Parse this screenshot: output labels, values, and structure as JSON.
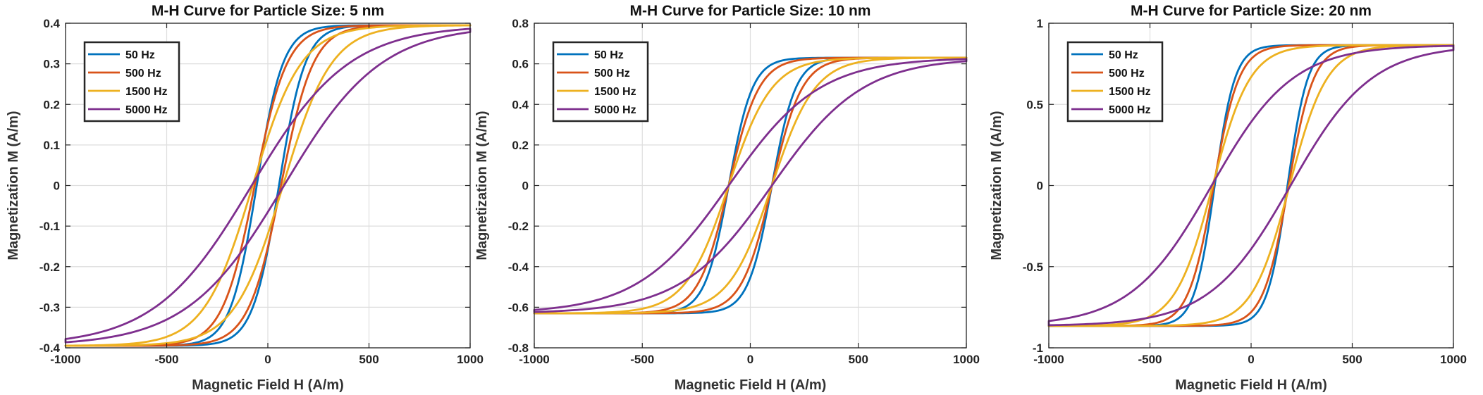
{
  "chart_data": [
    {
      "type": "line",
      "title": "M-H Curve for Particle Size: 5 nm",
      "xlabel": "Magnetic Field H (A/m)",
      "ylabel": "Magnetization M (A/m)",
      "xlim": [
        -1000,
        1000
      ],
      "ylim": [
        -0.4,
        0.4
      ],
      "xticks": [
        -1000,
        -500,
        0,
        500,
        1000
      ],
      "yticks": [
        -0.4,
        -0.3,
        -0.2,
        -0.1,
        0,
        0.1,
        0.2,
        0.3,
        0.4
      ],
      "grid": true,
      "legend_position": "top-left",
      "ms": 0.395,
      "series": [
        {
          "name": "50 Hz",
          "color": "#0072BD",
          "coercivity": 55,
          "width": 130
        },
        {
          "name": "500 Hz",
          "color": "#D95319",
          "coercivity": 65,
          "width": 160
        },
        {
          "name": "1500 Hz",
          "color": "#EDB120",
          "coercivity": 75,
          "width": 240
        },
        {
          "name": "5000 Hz",
          "color": "#7E2F8E",
          "coercivity": 80,
          "width": 480
        }
      ]
    },
    {
      "type": "line",
      "title": "M-H Curve for Particle Size: 10 nm",
      "xlabel": "Magnetic Field H (A/m)",
      "ylabel": "Magnetization M (A/m)",
      "xlim": [
        -1000,
        1000
      ],
      "ylim": [
        -0.8,
        0.8
      ],
      "xticks": [
        -1000,
        -500,
        0,
        500,
        1000
      ],
      "yticks": [
        -0.8,
        -0.6,
        -0.4,
        -0.2,
        0,
        0.2,
        0.4,
        0.6,
        0.8
      ],
      "grid": true,
      "legend_position": "top-left",
      "ms": 0.63,
      "series": [
        {
          "name": "50 Hz",
          "color": "#0072BD",
          "coercivity": 100,
          "width": 110
        },
        {
          "name": "500 Hz",
          "color": "#D95319",
          "coercivity": 100,
          "width": 140
        },
        {
          "name": "1500 Hz",
          "color": "#EDB120",
          "coercivity": 100,
          "width": 200
        },
        {
          "name": "5000 Hz",
          "color": "#7E2F8E",
          "coercivity": 100,
          "width": 420
        }
      ]
    },
    {
      "type": "line",
      "title": "M-H Curve for Particle Size: 20 nm",
      "xlabel": "Magnetic Field H (A/m)",
      "ylabel": "Magnetization M (A/m)",
      "xlim": [
        -1000,
        1000
      ],
      "ylim": [
        -1,
        1
      ],
      "xticks": [
        -1000,
        -500,
        0,
        500,
        1000
      ],
      "yticks": [
        -1,
        -0.5,
        0,
        0.5,
        1
      ],
      "grid": true,
      "legend_position": "top-left",
      "ms": 0.865,
      "series": [
        {
          "name": "50 Hz",
          "color": "#0072BD",
          "coercivity": 180,
          "width": 100
        },
        {
          "name": "500 Hz",
          "color": "#D95319",
          "coercivity": 185,
          "width": 125
        },
        {
          "name": "1500 Hz",
          "color": "#EDB120",
          "coercivity": 190,
          "width": 185
        },
        {
          "name": "5000 Hz",
          "color": "#7E2F8E",
          "coercivity": 195,
          "width": 400
        }
      ]
    }
  ]
}
